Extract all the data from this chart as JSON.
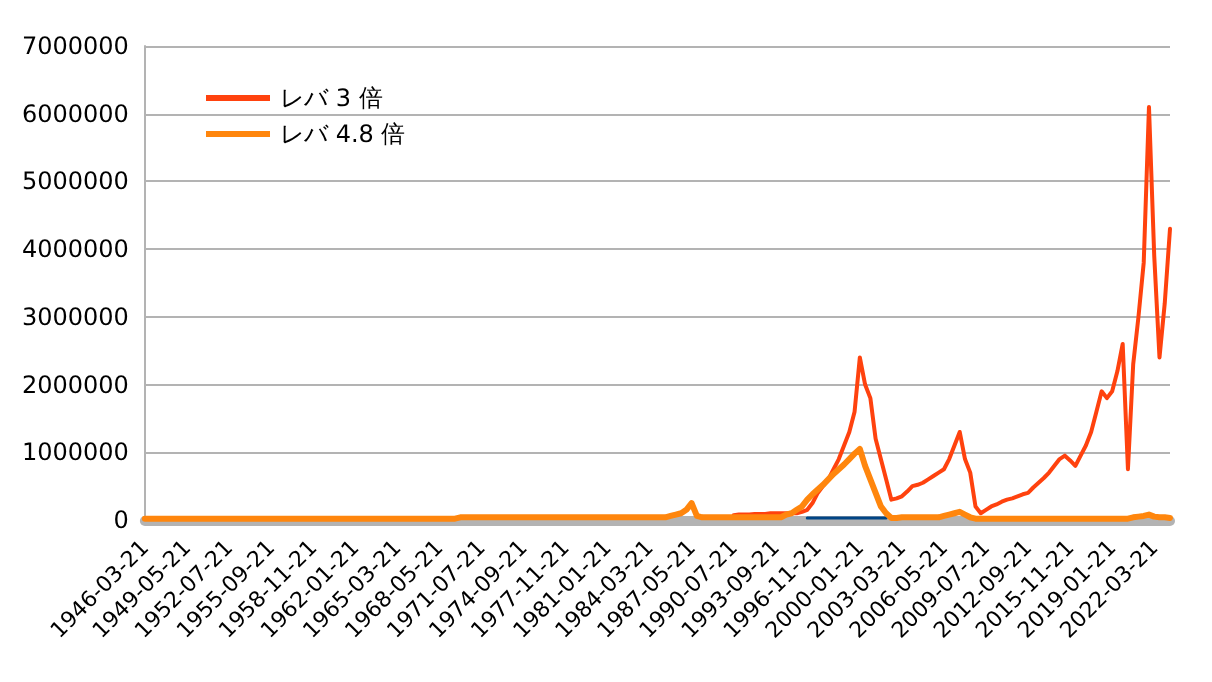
{
  "chart_data": {
    "type": "line",
    "categories": [
      "1946-03-21",
      null,
      null,
      null,
      null,
      null,
      null,
      null,
      "1949-05-21",
      null,
      null,
      null,
      null,
      null,
      null,
      null,
      "1952-07-21",
      null,
      null,
      null,
      null,
      null,
      null,
      null,
      "1955-09-21",
      null,
      null,
      null,
      null,
      null,
      null,
      null,
      "1958-11-21",
      null,
      null,
      null,
      null,
      null,
      null,
      null,
      "1962-01-21",
      null,
      null,
      null,
      null,
      null,
      null,
      null,
      "1965-03-21",
      null,
      null,
      null,
      null,
      null,
      null,
      null,
      "1968-05-21",
      null,
      null,
      null,
      null,
      null,
      null,
      null,
      "1971-07-21",
      null,
      null,
      null,
      null,
      null,
      null,
      null,
      "1974-09-21",
      null,
      null,
      null,
      null,
      null,
      null,
      null,
      "1977-11-21",
      null,
      null,
      null,
      null,
      null,
      null,
      null,
      "1981-01-21",
      null,
      null,
      null,
      null,
      null,
      null,
      null,
      "1984-03-21",
      null,
      null,
      null,
      null,
      null,
      null,
      null,
      "1987-05-21",
      null,
      null,
      null,
      null,
      null,
      null,
      null,
      "1990-07-21",
      null,
      null,
      null,
      null,
      null,
      null,
      null,
      "1993-09-21",
      null,
      null,
      null,
      null,
      null,
      null,
      null,
      "1996-11-21",
      null,
      null,
      null,
      null,
      null,
      null,
      null,
      "2000-01-21",
      null,
      null,
      null,
      null,
      null,
      null,
      null,
      "2003-03-21",
      null,
      null,
      null,
      null,
      null,
      null,
      null,
      "2006-05-21",
      null,
      null,
      null,
      null,
      null,
      null,
      null,
      "2009-07-21",
      null,
      null,
      null,
      null,
      null,
      null,
      null,
      "2012-09-21",
      null,
      null,
      null,
      null,
      null,
      null,
      null,
      "2015-11-21",
      null,
      null,
      null,
      null,
      null,
      null,
      null,
      "2019-01-21",
      null,
      null,
      null,
      null,
      null,
      null,
      null,
      "2022-03-21",
      null,
      null,
      null
    ],
    "series": [
      {
        "color": "#004586",
        "values": [
          null,
          null,
          null,
          null,
          null,
          null,
          null,
          null,
          null,
          null,
          null,
          null,
          null,
          null,
          null,
          null,
          null,
          null,
          null,
          null,
          null,
          null,
          null,
          null,
          null,
          null,
          null,
          null,
          null,
          null,
          null,
          null,
          null,
          null,
          null,
          null,
          null,
          null,
          null,
          null,
          null,
          null,
          null,
          null,
          null,
          null,
          null,
          null,
          null,
          null,
          null,
          null,
          null,
          null,
          null,
          null,
          null,
          null,
          null,
          null,
          null,
          null,
          null,
          null,
          null,
          null,
          null,
          null,
          null,
          null,
          null,
          null,
          null,
          null,
          null,
          null,
          null,
          null,
          null,
          null,
          null,
          null,
          null,
          null,
          null,
          null,
          null,
          null,
          null,
          null,
          null,
          null,
          null,
          null,
          null,
          null,
          null,
          null,
          null,
          null,
          null,
          null,
          null,
          null,
          null,
          null,
          null,
          null,
          null,
          null,
          null,
          null,
          null,
          null,
          null,
          null,
          null,
          null,
          null,
          null,
          null,
          null,
          null,
          null,
          null,
          null,
          30000,
          30000,
          30000,
          30000,
          30000,
          30000,
          30000,
          30000,
          30000,
          30000,
          30000,
          30000,
          30000,
          30000,
          30000,
          30000,
          null,
          null,
          null,
          null,
          null,
          null,
          null,
          null,
          null,
          null,
          null,
          null,
          null,
          null,
          null,
          null,
          null,
          null,
          null,
          null,
          null,
          null,
          null,
          null,
          null,
          null,
          null,
          null,
          null,
          null,
          null,
          null,
          null,
          null,
          null,
          null,
          null,
          null,
          null,
          null,
          null,
          null,
          null,
          null,
          null,
          null,
          null,
          null,
          null,
          null,
          null,
          null,
          null,
          null
        ]
      },
      {
        "name": "レバ 3 倍",
        "color": "#ff420e",
        "values": [
          null,
          null,
          null,
          null,
          null,
          null,
          null,
          null,
          null,
          null,
          null,
          null,
          null,
          null,
          null,
          null,
          null,
          null,
          null,
          null,
          null,
          null,
          null,
          null,
          null,
          null,
          null,
          null,
          null,
          null,
          null,
          null,
          null,
          null,
          null,
          null,
          null,
          null,
          null,
          null,
          null,
          null,
          null,
          null,
          null,
          null,
          null,
          null,
          null,
          null,
          null,
          null,
          null,
          null,
          null,
          null,
          null,
          null,
          null,
          null,
          null,
          null,
          null,
          null,
          null,
          null,
          null,
          null,
          null,
          null,
          null,
          null,
          null,
          null,
          null,
          null,
          null,
          null,
          null,
          null,
          null,
          null,
          null,
          null,
          null,
          null,
          null,
          null,
          null,
          null,
          null,
          null,
          null,
          null,
          null,
          null,
          null,
          null,
          null,
          null,
          null,
          null,
          null,
          null,
          null,
          null,
          null,
          null,
          null,
          null,
          null,
          null,
          70000,
          80000,
          80000,
          80000,
          90000,
          90000,
          90000,
          100000,
          100000,
          100000,
          100000,
          100000,
          100000,
          120000,
          150000,
          250000,
          400000,
          500000,
          600000,
          750000,
          900000,
          1100000,
          1300000,
          1600000,
          2400000,
          2000000,
          1800000,
          1200000,
          900000,
          600000,
          300000,
          320000,
          350000,
          420000,
          500000,
          520000,
          550000,
          600000,
          650000,
          700000,
          750000,
          900000,
          1100000,
          1300000,
          900000,
          700000,
          200000,
          100000,
          150000,
          200000,
          230000,
          270000,
          300000,
          320000,
          350000,
          380000,
          400000,
          480000,
          550000,
          620000,
          700000,
          800000,
          900000,
          950000,
          880000,
          800000,
          950000,
          1100000,
          1300000,
          1600000,
          1900000,
          1800000,
          1900000,
          2200000,
          2600000,
          750000,
          2300000,
          3000000,
          3800000,
          6100000,
          3900000,
          2400000,
          3200000,
          4300000
        ]
      },
      {
        "name": "レバ 4.8 倍",
        "color": "#ff860d",
        "values": [
          20000,
          20000,
          20000,
          20000,
          20000,
          20000,
          20000,
          20000,
          20000,
          20000,
          20000,
          20000,
          20000,
          20000,
          20000,
          20000,
          20000,
          20000,
          20000,
          20000,
          20000,
          20000,
          20000,
          20000,
          20000,
          20000,
          20000,
          20000,
          20000,
          20000,
          20000,
          20000,
          20000,
          20000,
          20000,
          20000,
          20000,
          20000,
          20000,
          20000,
          20000,
          20000,
          20000,
          20000,
          20000,
          20000,
          20000,
          20000,
          20000,
          20000,
          20000,
          20000,
          20000,
          20000,
          20000,
          20000,
          20000,
          20000,
          20000,
          20000,
          40000,
          40000,
          40000,
          40000,
          40000,
          40000,
          40000,
          40000,
          40000,
          40000,
          40000,
          40000,
          40000,
          40000,
          40000,
          40000,
          40000,
          40000,
          40000,
          40000,
          40000,
          40000,
          40000,
          40000,
          40000,
          40000,
          40000,
          40000,
          40000,
          40000,
          40000,
          40000,
          40000,
          40000,
          40000,
          40000,
          40000,
          40000,
          40000,
          40000,
          60000,
          80000,
          100000,
          150000,
          250000,
          60000,
          40000,
          40000,
          40000,
          40000,
          40000,
          40000,
          40000,
          40000,
          40000,
          40000,
          40000,
          40000,
          40000,
          40000,
          40000,
          40000,
          80000,
          100000,
          150000,
          200000,
          300000,
          380000,
          450000,
          520000,
          600000,
          680000,
          750000,
          820000,
          900000,
          980000,
          1050000,
          800000,
          600000,
          400000,
          200000,
          100000,
          30000,
          30000,
          40000,
          40000,
          40000,
          40000,
          40000,
          40000,
          40000,
          40000,
          60000,
          80000,
          100000,
          120000,
          80000,
          40000,
          20000,
          20000,
          20000,
          20000,
          20000,
          20000,
          20000,
          20000,
          20000,
          20000,
          20000,
          20000,
          20000,
          20000,
          20000,
          20000,
          20000,
          20000,
          20000,
          20000,
          20000,
          20000,
          20000,
          20000,
          20000,
          20000,
          20000,
          20000,
          20000,
          20000,
          40000,
          50000,
          60000,
          80000,
          50000,
          40000,
          40000,
          30000
        ]
      }
    ],
    "ylim": [
      0,
      7000000
    ],
    "yticks": [
      0,
      1000000,
      2000000,
      3000000,
      4000000,
      5000000,
      6000000,
      7000000
    ],
    "grid": "y",
    "legend": "top left",
    "marker": "none",
    "line_style": "solid"
  }
}
